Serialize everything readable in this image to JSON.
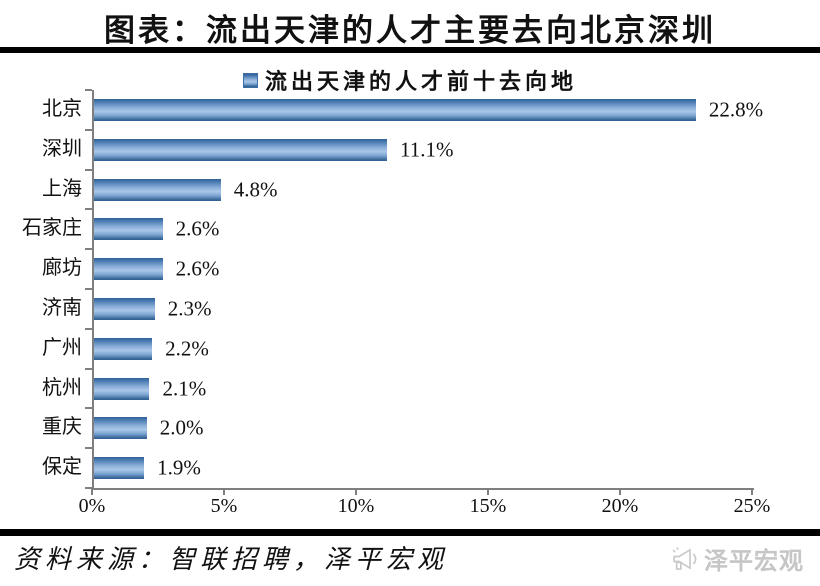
{
  "header": {
    "title": "图表：流出天津的人才主要去向北京深圳"
  },
  "chart_data": {
    "type": "bar",
    "orientation": "horizontal",
    "title": "图表：流出天津的人才主要去向北京深圳",
    "legend": "流出天津的人才前十去向地",
    "legend_position": "top",
    "categories": [
      "北京",
      "深圳",
      "上海",
      "石家庄",
      "廊坊",
      "济南",
      "广州",
      "杭州",
      "重庆",
      "保定"
    ],
    "values": [
      22.8,
      11.1,
      4.8,
      2.6,
      2.6,
      2.3,
      2.2,
      2.1,
      2.0,
      1.9
    ],
    "value_labels": [
      "22.8%",
      "11.1%",
      "4.8%",
      "2.6%",
      "2.6%",
      "2.3%",
      "2.2%",
      "2.1%",
      "2.0%",
      "1.9%"
    ],
    "x_ticks": [
      "0%",
      "5%",
      "10%",
      "15%",
      "20%",
      "25%"
    ],
    "xlim": [
      0,
      25
    ],
    "grid": false,
    "colors": {
      "bar_dark": "#2e6197",
      "bar_light": "#a9c7e8",
      "axis": "#7f7f7f",
      "rule": "#000000"
    }
  },
  "footer": {
    "source": "资料来源：智联招聘，泽平宏观",
    "logo_text": "泽平宏观",
    "logo_icon": "megaphone-icon",
    "logo_color": "#c6c6c6"
  }
}
